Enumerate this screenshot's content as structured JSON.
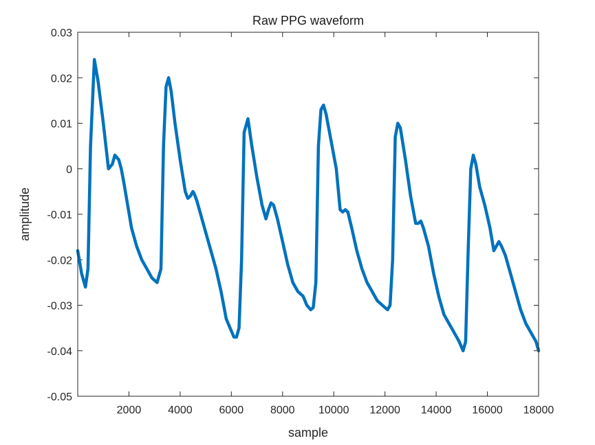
{
  "chart_data": {
    "type": "line",
    "title": "Raw PPG waveform",
    "xlabel": "sample",
    "ylabel": "amplitude",
    "xlim": [
      0,
      18000
    ],
    "ylim": [
      -0.05,
      0.03
    ],
    "xticks": [
      2000,
      4000,
      6000,
      8000,
      10000,
      12000,
      14000,
      16000,
      18000
    ],
    "xtick_labels": [
      "2000",
      "4000",
      "6000",
      "8000",
      "10000",
      "12000",
      "14000",
      "16000",
      "18000"
    ],
    "yticks": [
      -0.05,
      -0.04,
      -0.03,
      -0.02,
      -0.01,
      0,
      0.01,
      0.02,
      0.03
    ],
    "ytick_labels": [
      "-0.05",
      "-0.04",
      "-0.03",
      "-0.02",
      "-0.01",
      "0",
      "0.01",
      "0.02",
      "0.03"
    ],
    "grid": false,
    "series": [
      {
        "color": "#0072BD",
        "x": [
          0,
          150,
          300,
          400,
          500,
          650,
          800,
          1000,
          1200,
          1350,
          1450,
          1600,
          1700,
          1800,
          1950,
          2100,
          2300,
          2500,
          2700,
          2900,
          3100,
          3250,
          3350,
          3450,
          3550,
          3650,
          3800,
          4000,
          4200,
          4300,
          4400,
          4500,
          4550,
          4650,
          4800,
          5000,
          5200,
          5400,
          5600,
          5800,
          5950,
          6100,
          6200,
          6300,
          6400,
          6500,
          6650,
          6800,
          7000,
          7200,
          7350,
          7450,
          7550,
          7650,
          7800,
          8000,
          8200,
          8400,
          8600,
          8800,
          8950,
          9100,
          9200,
          9300,
          9400,
          9500,
          9600,
          9700,
          9900,
          10100,
          10250,
          10350,
          10450,
          10550,
          10700,
          10900,
          11100,
          11300,
          11500,
          11700,
          11900,
          12100,
          12200,
          12300,
          12400,
          12500,
          12600,
          12800,
          13000,
          13200,
          13300,
          13400,
          13500,
          13700,
          13900,
          14100,
          14300,
          14500,
          14700,
          14900,
          15050,
          15150,
          15250,
          15350,
          15450,
          15550,
          15700,
          15900,
          16100,
          16250,
          16350,
          16450,
          16550,
          16700,
          16900,
          17100,
          17300,
          17500,
          17700,
          17900,
          18000
        ],
        "y": [
          -0.018,
          -0.023,
          -0.026,
          -0.022,
          0.005,
          0.024,
          0.019,
          0.01,
          0.0,
          0.001,
          0.003,
          0.002,
          0.0,
          -0.003,
          -0.008,
          -0.013,
          -0.017,
          -0.02,
          -0.022,
          -0.024,
          -0.025,
          -0.022,
          0.005,
          0.018,
          0.02,
          0.017,
          0.01,
          0.002,
          -0.005,
          -0.0065,
          -0.006,
          -0.005,
          -0.0055,
          -0.007,
          -0.01,
          -0.014,
          -0.018,
          -0.022,
          -0.027,
          -0.033,
          -0.035,
          -0.037,
          -0.037,
          -0.035,
          -0.02,
          0.008,
          0.011,
          0.005,
          -0.002,
          -0.008,
          -0.011,
          -0.009,
          -0.0075,
          -0.008,
          -0.011,
          -0.016,
          -0.021,
          -0.025,
          -0.027,
          -0.028,
          -0.03,
          -0.031,
          -0.0305,
          -0.025,
          0.005,
          0.013,
          0.014,
          0.012,
          0.006,
          0.0,
          -0.009,
          -0.0095,
          -0.009,
          -0.0095,
          -0.013,
          -0.018,
          -0.022,
          -0.025,
          -0.027,
          -0.029,
          -0.03,
          -0.031,
          -0.03,
          -0.02,
          0.007,
          0.01,
          0.009,
          0.002,
          -0.006,
          -0.012,
          -0.012,
          -0.0115,
          -0.013,
          -0.017,
          -0.023,
          -0.028,
          -0.032,
          -0.034,
          -0.036,
          -0.038,
          -0.04,
          -0.038,
          -0.018,
          0.0,
          0.003,
          0.001,
          -0.004,
          -0.008,
          -0.013,
          -0.018,
          -0.017,
          -0.016,
          -0.017,
          -0.019,
          -0.023,
          -0.027,
          -0.031,
          -0.034,
          -0.036,
          -0.038,
          -0.04
        ]
      }
    ]
  }
}
